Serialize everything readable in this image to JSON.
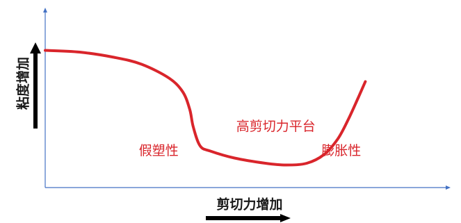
{
  "chart_data": {
    "type": "line",
    "xlabel": "剪切力增加",
    "ylabel": "粘度增加",
    "ticks_shown": false,
    "grid": false,
    "legend": "none",
    "x_scale": "qualitative",
    "y_scale": "qualitative",
    "xlim": [
      0,
      1
    ],
    "ylim": [
      0,
      1
    ],
    "series": [
      {
        "color": "#d9252b",
        "x": [
          0.0,
          0.1,
          0.2,
          0.28,
          0.36,
          0.4,
          0.42,
          0.43,
          0.45,
          0.48,
          0.55,
          0.64,
          0.7,
          0.76,
          0.81,
          0.85,
          0.88,
          0.91,
          0.93
        ],
        "y": [
          0.79,
          0.78,
          0.75,
          0.71,
          0.63,
          0.55,
          0.45,
          0.35,
          0.24,
          0.21,
          0.17,
          0.14,
          0.13,
          0.14,
          0.19,
          0.28,
          0.39,
          0.52,
          0.61
        ]
      }
    ],
    "annotations": [
      {
        "text": "假塑性",
        "color": "#d9252b",
        "x": 0.33,
        "y": 0.21
      },
      {
        "text": "高剪切力平台",
        "color": "#d9252b",
        "x": 0.67,
        "y": 0.35
      },
      {
        "text": "膨胀性",
        "color": "#d9252b",
        "x": 0.86,
        "y": 0.21
      }
    ]
  },
  "colors": {
    "curve": "#d9252b",
    "axis_line": "#4472c4",
    "text": "#1a1a1a",
    "arrow": "#000000"
  },
  "icons": {
    "x_direction_arrow": "right-arrow",
    "y_direction_arrow": "up-arrow"
  }
}
